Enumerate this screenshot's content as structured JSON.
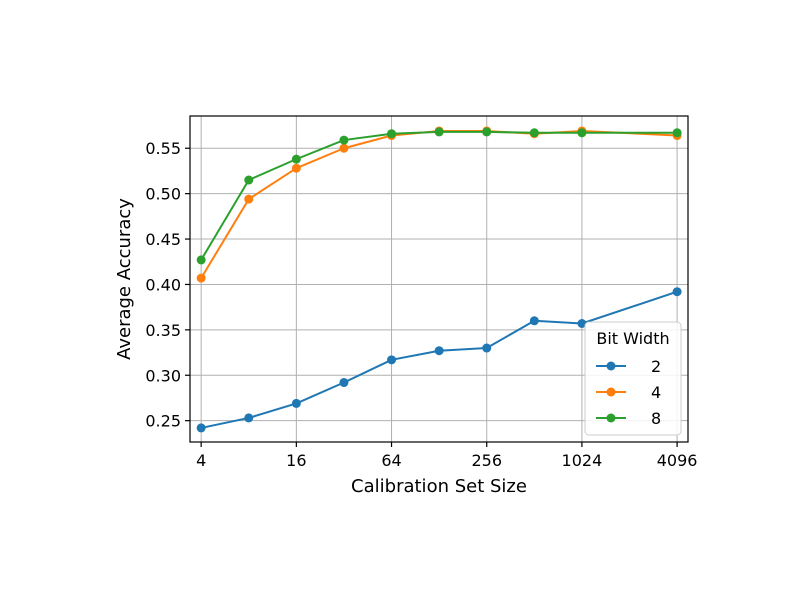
{
  "chart_data": {
    "type": "line",
    "title": "",
    "xlabel": "Calibration Set Size",
    "ylabel": "Average Accuracy",
    "x_scale": "log2",
    "x": [
      4,
      8,
      16,
      32,
      64,
      128,
      256,
      512,
      1024,
      4096
    ],
    "xticks": [
      4,
      16,
      64,
      256,
      1024,
      4096
    ],
    "xtick_labels": [
      "4",
      "16",
      "64",
      "256",
      "1024",
      "4096"
    ],
    "xlim": [
      3.4,
      4800
    ],
    "yticks": [
      0.25,
      0.3,
      0.35,
      0.4,
      0.45,
      0.5,
      0.55
    ],
    "ytick_labels": [
      "0.25",
      "0.30",
      "0.35",
      "0.40",
      "0.45",
      "0.50",
      "0.55"
    ],
    "ylim": [
      0.2265,
      0.5855
    ],
    "grid": true,
    "legend": {
      "title": "Bit Width",
      "placement": "lower-right"
    },
    "series": [
      {
        "name": "2",
        "color": "#1f77b4",
        "values": [
          0.242,
          0.253,
          0.269,
          0.292,
          0.317,
          0.327,
          0.33,
          0.36,
          0.357,
          0.392
        ]
      },
      {
        "name": "4",
        "color": "#ff7f0e",
        "values": [
          0.407,
          0.494,
          0.528,
          0.55,
          0.564,
          0.569,
          0.569,
          0.566,
          0.569,
          0.564
        ]
      },
      {
        "name": "8",
        "color": "#2ca02c",
        "values": [
          0.427,
          0.515,
          0.538,
          0.559,
          0.566,
          0.568,
          0.568,
          0.567,
          0.567,
          0.567
        ]
      }
    ]
  }
}
